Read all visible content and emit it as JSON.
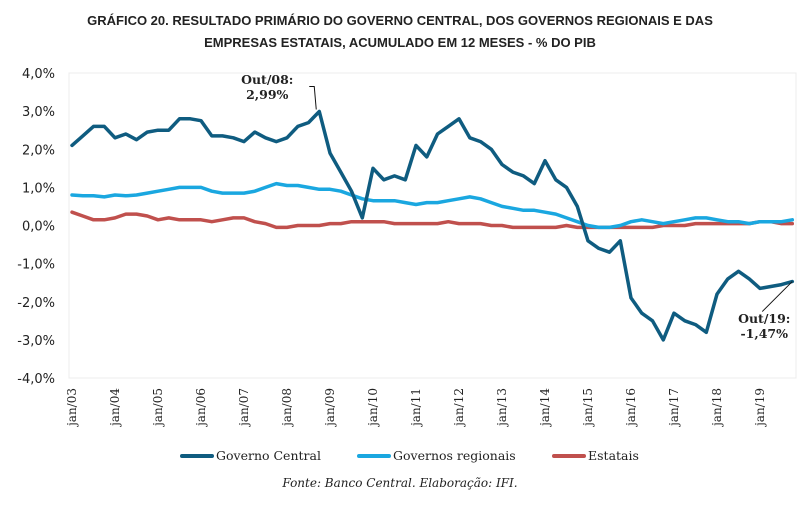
{
  "chart_data": {
    "type": "line",
    "title": "GRÁFICO 20. RESULTADO PRIMÁRIO DO GOVERNO CENTRAL, DOS GOVERNOS REGIONAIS E DAS EMPRESAS ESTATAIS, ACUMULADO EM 12 MESES - % DO PIB",
    "title_lines": [
      "GRÁFICO 20. RESULTADO PRIMÁRIO DO GOVERNO CENTRAL, DOS GOVERNOS REGIONAIS E DAS",
      "EMPRESAS ESTATAIS, ACUMULADO EM 12 MESES - % DO PIB"
    ],
    "xlabel": "",
    "ylabel": "",
    "ylim": [
      -4.0,
      4.0
    ],
    "yticks": [
      4.0,
      3.0,
      2.0,
      1.0,
      0.0,
      -1.0,
      -2.0,
      -3.0,
      -4.0
    ],
    "ytick_labels": [
      "4,0%",
      "3,0%",
      "2,0%",
      "1,0%",
      "0,0%",
      "-1,0%",
      "-2,0%",
      "-3,0%",
      "-4,0%"
    ],
    "xlim": [
      "2003-01",
      "2019-10"
    ],
    "xtick_labels": [
      "jan/03",
      "jan/04",
      "jan/05",
      "jan/06",
      "jan/07",
      "jan/08",
      "jan/09",
      "jan/10",
      "jan/11",
      "jan/12",
      "jan/13",
      "jan/14",
      "jan/15",
      "jan/16",
      "jan/17",
      "jan/18",
      "jan/19"
    ],
    "x": [
      "2003-01",
      "2003-04",
      "2003-07",
      "2003-10",
      "2004-01",
      "2004-04",
      "2004-07",
      "2004-10",
      "2005-01",
      "2005-04",
      "2005-07",
      "2005-10",
      "2006-01",
      "2006-04",
      "2006-07",
      "2006-10",
      "2007-01",
      "2007-04",
      "2007-07",
      "2007-10",
      "2008-01",
      "2008-04",
      "2008-07",
      "2008-10",
      "2009-01",
      "2009-04",
      "2009-07",
      "2009-10",
      "2010-01",
      "2010-04",
      "2010-07",
      "2010-10",
      "2011-01",
      "2011-04",
      "2011-07",
      "2011-10",
      "2012-01",
      "2012-04",
      "2012-07",
      "2012-10",
      "2013-01",
      "2013-04",
      "2013-07",
      "2013-10",
      "2014-01",
      "2014-04",
      "2014-07",
      "2014-10",
      "2015-01",
      "2015-04",
      "2015-07",
      "2015-10",
      "2016-01",
      "2016-04",
      "2016-07",
      "2016-10",
      "2017-01",
      "2017-04",
      "2017-07",
      "2017-10",
      "2018-01",
      "2018-04",
      "2018-07",
      "2018-10",
      "2019-01",
      "2019-04",
      "2019-07",
      "2019-10"
    ],
    "series": [
      {
        "name": "Governo Central",
        "color": "#0f5c80",
        "values": [
          2.1,
          2.35,
          2.6,
          2.6,
          2.3,
          2.4,
          2.25,
          2.45,
          2.5,
          2.5,
          2.8,
          2.8,
          2.75,
          2.35,
          2.35,
          2.3,
          2.2,
          2.45,
          2.3,
          2.2,
          2.3,
          2.6,
          2.7,
          2.99,
          1.9,
          1.4,
          0.9,
          0.2,
          1.5,
          1.2,
          1.3,
          1.2,
          2.1,
          1.8,
          2.4,
          2.6,
          2.8,
          2.3,
          2.2,
          2.0,
          1.6,
          1.4,
          1.3,
          1.1,
          1.7,
          1.2,
          1.0,
          0.5,
          -0.4,
          -0.6,
          -0.7,
          -0.4,
          -1.9,
          -2.3,
          -2.5,
          -3.0,
          -2.3,
          -2.5,
          -2.6,
          -2.8,
          -1.8,
          -1.4,
          -1.2,
          -1.4,
          -1.65,
          -1.6,
          -1.55,
          -1.47
        ]
      },
      {
        "name": "Governos regionais",
        "color": "#1aa7e0",
        "values": [
          0.8,
          0.78,
          0.78,
          0.75,
          0.8,
          0.78,
          0.8,
          0.85,
          0.9,
          0.95,
          1.0,
          1.0,
          1.0,
          0.9,
          0.85,
          0.85,
          0.85,
          0.9,
          1.0,
          1.1,
          1.05,
          1.05,
          1.0,
          0.95,
          0.95,
          0.9,
          0.8,
          0.7,
          0.65,
          0.65,
          0.65,
          0.6,
          0.55,
          0.6,
          0.6,
          0.65,
          0.7,
          0.75,
          0.7,
          0.6,
          0.5,
          0.45,
          0.4,
          0.4,
          0.35,
          0.3,
          0.2,
          0.1,
          0.0,
          -0.05,
          -0.05,
          0.0,
          0.1,
          0.15,
          0.1,
          0.05,
          0.1,
          0.15,
          0.2,
          0.2,
          0.15,
          0.1,
          0.1,
          0.05,
          0.1,
          0.1,
          0.1,
          0.15
        ]
      },
      {
        "name": "Estatais",
        "color": "#c0504d",
        "values": [
          0.35,
          0.25,
          0.15,
          0.15,
          0.2,
          0.3,
          0.3,
          0.25,
          0.15,
          0.2,
          0.15,
          0.15,
          0.15,
          0.1,
          0.15,
          0.2,
          0.2,
          0.1,
          0.05,
          -0.05,
          -0.05,
          0.0,
          0.0,
          0.0,
          0.05,
          0.05,
          0.1,
          0.1,
          0.1,
          0.1,
          0.05,
          0.05,
          0.05,
          0.05,
          0.05,
          0.1,
          0.05,
          0.05,
          0.05,
          0.0,
          0.0,
          -0.05,
          -0.05,
          -0.05,
          -0.05,
          -0.05,
          0.0,
          -0.05,
          -0.05,
          -0.05,
          -0.05,
          -0.05,
          -0.05,
          -0.05,
          -0.05,
          0.0,
          0.0,
          0.0,
          0.05,
          0.05,
          0.05,
          0.05,
          0.05,
          0.05,
          0.1,
          0.1,
          0.05,
          0.05
        ]
      }
    ],
    "annotations": [
      {
        "label_lines": [
          "Out/08:",
          "2,99%"
        ],
        "series": "Governo Central",
        "x": "2008-10",
        "y": 2.99
      },
      {
        "label_lines": [
          "Out/19:",
          "-1,47%"
        ],
        "series": "Governo Central",
        "x": "2019-10",
        "y": -1.47
      }
    ],
    "grid": false,
    "legend": "bottom",
    "source": "Fonte: Banco Central. Elaboração: IFI."
  }
}
